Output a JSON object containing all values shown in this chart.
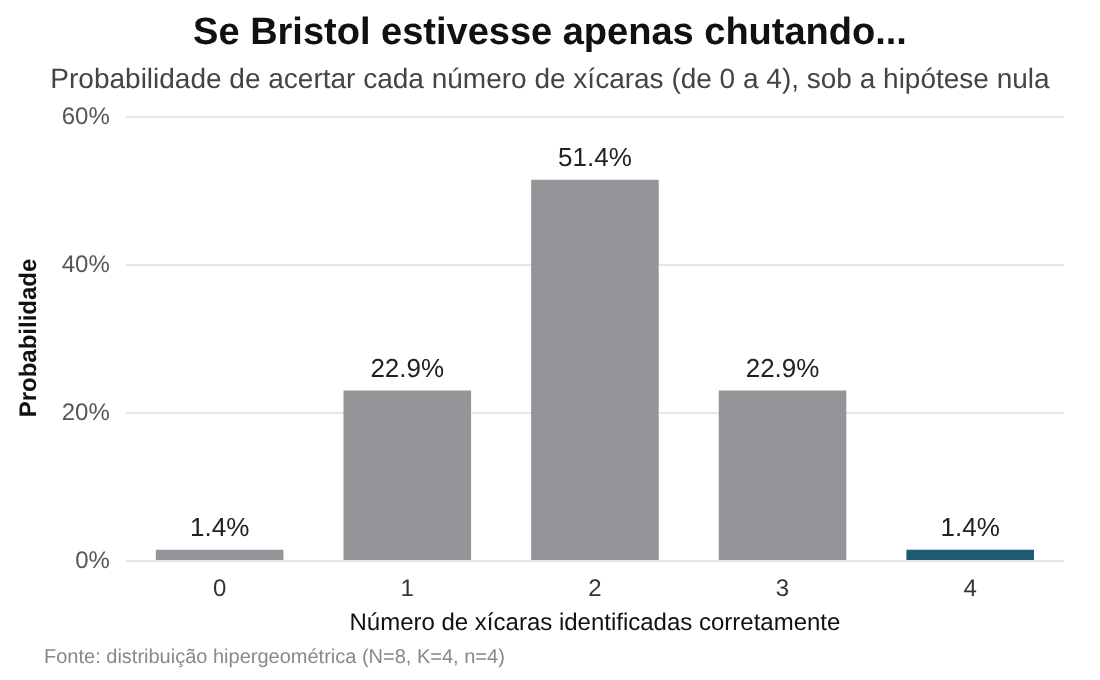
{
  "chart_data": {
    "type": "bar",
    "title": "Se Bristol estivesse apenas chutando...",
    "subtitle": "Probabilidade de acertar cada número de xícaras (de 0 a 4), sob a hipótese nula",
    "xlabel": "Número de xícaras identificadas corretamente",
    "ylabel": "Probabilidade",
    "categories": [
      "0",
      "1",
      "2",
      "3",
      "4"
    ],
    "values": [
      1.4,
      22.9,
      51.4,
      22.9,
      1.4
    ],
    "colors": [
      "#939598",
      "#939598",
      "#939598",
      "#939598",
      "#1f5a73"
    ],
    "value_labels": [
      "1.4%",
      "22.9%",
      "51.4%",
      "22.9%",
      "1.4%"
    ],
    "ylim": [
      0,
      60
    ],
    "yticks": [
      {
        "value": 0,
        "label": "0%"
      },
      {
        "value": 20,
        "label": "20%"
      },
      {
        "value": 40,
        "label": "40%"
      },
      {
        "value": 60,
        "label": "60%"
      }
    ],
    "grid": "y",
    "annotations": [
      "Fonte: distribuição hipergeométrica (N=8, K=4, n=4)"
    ]
  }
}
